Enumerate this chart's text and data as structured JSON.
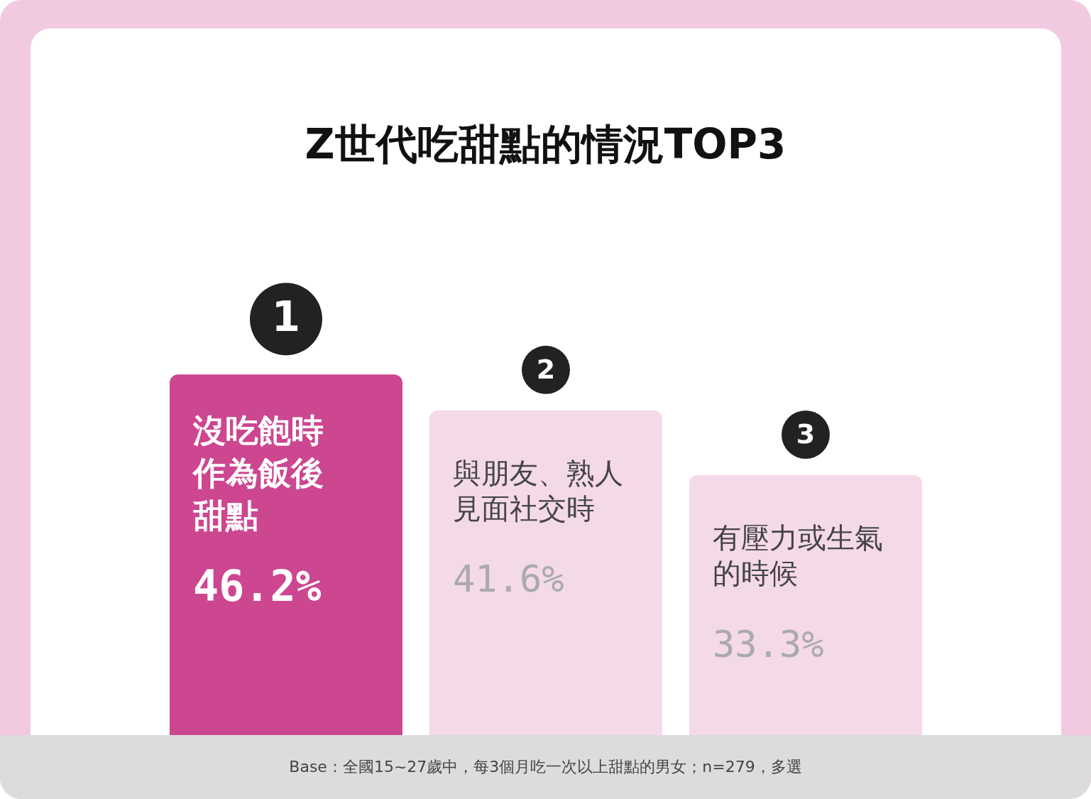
{
  "chart_data": {
    "type": "bar",
    "title": "Z世代吃甜點的情況TOP3",
    "categories": [
      "沒吃飽時作為飯後甜點",
      "與朋友、熟人見面社交時",
      "有壓力或生氣的時候"
    ],
    "values": [
      46.2,
      41.6,
      33.3
    ],
    "value_labels": [
      "46.2%",
      "41.6%",
      "33.3%"
    ],
    "colors": [
      "#cc4690",
      "#f4d9e8",
      "#f4d9e8"
    ],
    "annotations": [
      "1",
      "2",
      "3",
      "Base：全國15~27歲中，每3個月吃一次以上甜點的男女；n=279，多選"
    ]
  }
}
